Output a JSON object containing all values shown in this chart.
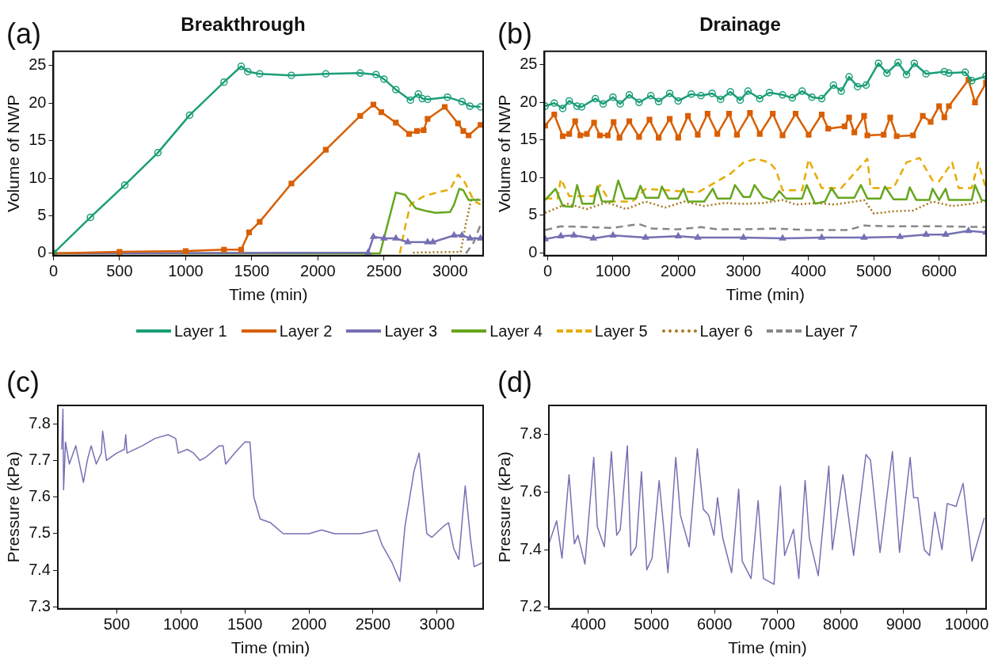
{
  "chart_data": [
    {
      "type": "line",
      "title": "Breakthrough",
      "xlabel": "Time (min)",
      "ylabel": "Volume of NWP",
      "annotations": [
        "(a)"
      ],
      "xlim": [
        0,
        3250
      ],
      "ylim": [
        -0.3,
        26.9
      ],
      "xticks": [
        0,
        500,
        1000,
        1500,
        2000,
        2500,
        3000
      ],
      "yticks": [
        0,
        5,
        10,
        15,
        20,
        25
      ],
      "legend": "bottom",
      "series": [
        {
          "name": "Layer 1",
          "color": "#1b9e77",
          "marker": "circle",
          "line_style": "solid",
          "x": [
            0,
            280,
            540,
            790,
            1030,
            1290,
            1420,
            1470,
            1560,
            1800,
            2060,
            2320,
            2440,
            2500,
            2590,
            2700,
            2760,
            2790,
            2830,
            2980,
            3090,
            3150,
            3230
          ],
          "values": [
            0,
            4.8,
            9.1,
            13.4,
            18.4,
            22.8,
            24.9,
            24.2,
            23.9,
            23.7,
            23.9,
            24,
            23.8,
            23.2,
            21.8,
            20.4,
            21.2,
            20.6,
            20.5,
            20.8,
            20.2,
            19.6,
            19.5
          ]
        },
        {
          "name": "Layer 2",
          "color": "#d95f02",
          "marker": "square",
          "line_style": "solid",
          "x": [
            0,
            500,
            1000,
            1290,
            1420,
            1480,
            1560,
            1800,
            2060,
            2320,
            2420,
            2480,
            2590,
            2690,
            2750,
            2800,
            2830,
            2960,
            3060,
            3100,
            3140,
            3230
          ],
          "values": [
            0,
            0.2,
            0.3,
            0.5,
            0.5,
            2.8,
            4.2,
            9.3,
            13.8,
            18.3,
            19.8,
            18.8,
            17.4,
            15.9,
            16.3,
            16.4,
            17.9,
            19.5,
            17.3,
            16.3,
            15.7,
            17.1
          ]
        },
        {
          "name": "Layer 3",
          "color": "#7570b3",
          "marker": "triangle",
          "line_style": "solid",
          "x": [
            0,
            2380,
            2420,
            2500,
            2590,
            2680,
            2830,
            2870,
            3030,
            3090,
            3150,
            3230
          ],
          "values": [
            0,
            0.1,
            2.2,
            2.0,
            2.0,
            1.5,
            1.5,
            1.5,
            2.4,
            2.4,
            2.0,
            2.0
          ]
        },
        {
          "name": "Layer 4",
          "color": "#66a61e",
          "line_style": "solid",
          "x": [
            0,
            2470,
            2590,
            2660,
            2740,
            2830,
            2890,
            3000,
            3030,
            3070,
            3100,
            3140,
            3230
          ],
          "values": [
            0,
            0,
            8.1,
            7.8,
            6.0,
            5.6,
            5.4,
            5.5,
            6.5,
            8.6,
            8.4,
            7.1,
            7.1
          ]
        },
        {
          "name": "Layer 5",
          "color": "#e6ab02",
          "line_style": "dashed",
          "x": [
            2620,
            2660,
            2700,
            2800,
            2900,
            3000,
            3060,
            3110,
            3180,
            3230
          ],
          "values": [
            0,
            3.5,
            6.5,
            7.6,
            8.1,
            8.5,
            10.5,
            9.5,
            7.0,
            6.5
          ]
        },
        {
          "name": "Layer 6",
          "color": "#a6761d",
          "line_style": "dotted",
          "x": [
            2720,
            3080,
            3120,
            3160,
            3230
          ],
          "values": [
            0.1,
            0.2,
            4,
            7.2,
            7.2
          ]
        },
        {
          "name": "Layer 7",
          "color": "#888888",
          "line_style": "dashed",
          "x": [
            3120,
            3180,
            3230
          ],
          "values": [
            0,
            1.5,
            3.8
          ]
        }
      ]
    },
    {
      "type": "line",
      "title": "Drainage",
      "xlabel": "Time (min)",
      "ylabel": "Volume of NWP",
      "annotations": [
        "(b)"
      ],
      "xlim": [
        -50,
        6720
      ],
      "ylim": [
        -0.4,
        26.8
      ],
      "xticks": [
        0,
        1000,
        2000,
        3000,
        4000,
        5000,
        6000
      ],
      "yticks": [
        0,
        5,
        10,
        15,
        20,
        25
      ],
      "legend": "bottom",
      "series": [
        {
          "name": "Layer 1",
          "color": "#1b9e77",
          "marker": "circle",
          "line_style": "solid",
          "x": [
            -40,
            100,
            230,
            330,
            450,
            520,
            730,
            850,
            1000,
            1110,
            1250,
            1400,
            1580,
            1700,
            1870,
            2000,
            2200,
            2350,
            2520,
            2650,
            2800,
            2950,
            3070,
            3250,
            3400,
            3600,
            3750,
            3900,
            4050,
            4200,
            4380,
            4500,
            4620,
            4750,
            4880,
            5070,
            5200,
            5370,
            5500,
            5620,
            5800,
            6080,
            6150,
            6400,
            6500,
            6720
          ],
          "values": [
            19.5,
            19.9,
            19.2,
            20.2,
            19.5,
            19.4,
            20.5,
            19.8,
            20.7,
            19.8,
            21.0,
            20.0,
            20.9,
            20.1,
            21.2,
            20.2,
            21.1,
            20.9,
            21.2,
            20.4,
            21.4,
            20.3,
            21.5,
            20.5,
            21.3,
            21.0,
            20.6,
            21.5,
            20.7,
            20.5,
            22.3,
            21.5,
            23.4,
            22.1,
            22.3,
            25.2,
            23.9,
            25.3,
            23.7,
            25.2,
            23.8,
            24.1,
            23.9,
            24.0,
            22.9,
            23.5
          ]
        },
        {
          "name": "Layer 2",
          "color": "#d95f02",
          "marker": "square",
          "line_style": "solid",
          "x": [
            -40,
            100,
            230,
            330,
            420,
            500,
            600,
            710,
            800,
            920,
            1010,
            1100,
            1250,
            1400,
            1560,
            1700,
            1870,
            2000,
            2150,
            2300,
            2450,
            2600,
            2780,
            2900,
            3100,
            3250,
            3450,
            3600,
            3800,
            4000,
            4200,
            4300,
            4550,
            4620,
            4700,
            4850,
            4900,
            5150,
            5250,
            5350,
            5600,
            5750,
            5870,
            6000,
            6080,
            6150,
            6450,
            6550,
            6720
          ],
          "values": [
            16.9,
            18.4,
            15.5,
            15.8,
            17.5,
            15.6,
            15.8,
            17.3,
            15.6,
            15.6,
            17.4,
            15.3,
            17.5,
            15.4,
            17.7,
            15.3,
            17.8,
            15.3,
            18.2,
            15.7,
            18.5,
            15.8,
            18.5,
            15.7,
            18.6,
            15.8,
            18.5,
            15.6,
            18.5,
            15.7,
            18.4,
            16.5,
            16.8,
            18.0,
            16.0,
            18.2,
            15.6,
            15.7,
            18.0,
            15.5,
            15.6,
            18.2,
            17.4,
            19.5,
            18.0,
            19.5,
            23.0,
            20.0,
            22.6
          ]
        },
        {
          "name": "Layer 3",
          "color": "#7570b3",
          "marker": "triangle",
          "line_style": "solid",
          "x": [
            -40,
            200,
            400,
            700,
            1000,
            1500,
            2000,
            2300,
            3000,
            3600,
            4200,
            4850,
            5400,
            5800,
            6100,
            6450,
            6720
          ],
          "values": [
            1.8,
            2.2,
            2.3,
            1.9,
            2.3,
            2.0,
            2.2,
            2.0,
            2.0,
            1.9,
            2.0,
            2.0,
            2.1,
            2.4,
            2.4,
            2.9,
            2.7
          ]
        },
        {
          "name": "Layer 4",
          "color": "#66a61e",
          "line_style": "solid",
          "x": [
            -40,
            120,
            230,
            380,
            450,
            530,
            700,
            760,
            830,
            1000,
            1080,
            1180,
            1350,
            1420,
            1500,
            1700,
            1750,
            1850,
            2000,
            2080,
            2150,
            2400,
            2530,
            2600,
            2800,
            2870,
            3000,
            3100,
            3170,
            3300,
            3450,
            3550,
            3650,
            3900,
            3970,
            4100,
            4250,
            4350,
            4450,
            4700,
            4800,
            4900,
            5100,
            5170,
            5300,
            5500,
            5550,
            5650,
            5850,
            5900,
            6000,
            6100,
            6150,
            6500,
            6550,
            6650,
            6720
          ],
          "values": [
            7,
            8.5,
            6.2,
            6.1,
            9.0,
            6.5,
            6.5,
            8.8,
            6.8,
            6.8,
            9.6,
            7.2,
            7.2,
            8.9,
            7.3,
            7.3,
            8.8,
            7.2,
            7.2,
            8.5,
            6.8,
            6.8,
            8.5,
            7.2,
            7.2,
            9.0,
            7.4,
            7.4,
            9.0,
            7.4,
            7.0,
            8.2,
            7.2,
            7.2,
            9.0,
            6.5,
            6.8,
            8.6,
            7.3,
            7.3,
            9.0,
            7.2,
            7.2,
            8.8,
            7.1,
            7.1,
            8.7,
            7.0,
            7.0,
            8.5,
            7.0,
            8.5,
            7.0,
            7.0,
            9.0,
            7.0,
            6.9
          ]
        },
        {
          "name": "Layer 5",
          "color": "#e6ab02",
          "line_style": "dashed",
          "x": [
            -40,
            150,
            200,
            330,
            700,
            800,
            950,
            1300,
            1500,
            2300,
            2800,
            3000,
            3200,
            3400,
            3500,
            3600,
            3900,
            4000,
            4200,
            4500,
            4900,
            4950,
            5300,
            5500,
            5700,
            5900,
            6000,
            6200,
            6300,
            6500,
            6600,
            6720
          ],
          "values": [
            7.2,
            7.2,
            9.8,
            7.5,
            7.5,
            9.0,
            6.8,
            6.8,
            8.5,
            8.0,
            10.5,
            12.0,
            12.5,
            12.0,
            11,
            8.3,
            8.3,
            12.4,
            8.6,
            8.6,
            12.5,
            8.6,
            8.6,
            12.0,
            12.6,
            9.6,
            9.5,
            12.0,
            8.6,
            8.6,
            12.0,
            8.5
          ]
        },
        {
          "name": "Layer 6",
          "color": "#a6761d",
          "line_style": "dotted",
          "x": [
            -40,
            300,
            600,
            900,
            1200,
            1500,
            1800,
            2100,
            2400,
            2700,
            3000,
            3300,
            3600,
            3800,
            4100,
            4400,
            4850,
            5000,
            5300,
            5600,
            5900,
            6200,
            6500,
            6720
          ],
          "values": [
            5.3,
            6.5,
            5.8,
            6.7,
            5.8,
            6.8,
            6.0,
            6.8,
            6.2,
            6.6,
            6.5,
            6.6,
            7.0,
            6.4,
            6.6,
            6.4,
            7.0,
            5.2,
            5.5,
            5.6,
            6.8,
            6.2,
            6.5,
            6.9
          ]
        },
        {
          "name": "Layer 7",
          "color": "#888888",
          "line_style": "dashed",
          "x": [
            -40,
            200,
            600,
            1000,
            1400,
            1600,
            2000,
            2350,
            2600,
            3000,
            3500,
            4000,
            4600,
            4850,
            5200,
            6000,
            6720
          ],
          "values": [
            3.0,
            3.5,
            3.4,
            3.3,
            3.8,
            3.2,
            3.1,
            3.4,
            3.1,
            3.1,
            3.2,
            3.0,
            3.0,
            3.6,
            3.5,
            3.5,
            3.4
          ]
        }
      ]
    },
    {
      "type": "line",
      "xlabel": "Time (min)",
      "ylabel": "Pressure (kPa)",
      "annotations": [
        "(c)"
      ],
      "xlim": [
        40,
        3360
      ],
      "ylim": [
        7.295,
        7.85
      ],
      "xticks": [
        500,
        1000,
        1500,
        2000,
        2500,
        3000
      ],
      "yticks": [
        7.3,
        7.4,
        7.5,
        7.6,
        7.7,
        7.8
      ],
      "series": [
        {
          "color": "#7570b3",
          "x": [
            70,
            80,
            85,
            100,
            130,
            180,
            240,
            270,
            300,
            340,
            380,
            390,
            420,
            500,
            560,
            570,
            580,
            700,
            800,
            900,
            960,
            980,
            1050,
            1100,
            1150,
            1200,
            1300,
            1330,
            1350,
            1420,
            1500,
            1540,
            1570,
            1620,
            1700,
            1800,
            1900,
            2000,
            2100,
            2200,
            2300,
            2400,
            2530,
            2570,
            2650,
            2710,
            2750,
            2820,
            2860,
            2880,
            2920,
            2960,
            3050,
            3090,
            3130,
            3170,
            3220,
            3260,
            3290,
            3350
          ],
          "values": [
            7.73,
            7.84,
            7.62,
            7.75,
            7.69,
            7.74,
            7.64,
            7.7,
            7.74,
            7.69,
            7.72,
            7.78,
            7.7,
            7.72,
            7.73,
            7.77,
            7.72,
            7.74,
            7.76,
            7.77,
            7.76,
            7.72,
            7.73,
            7.72,
            7.7,
            7.71,
            7.74,
            7.74,
            7.69,
            7.72,
            7.75,
            7.75,
            7.6,
            7.54,
            7.53,
            7.5,
            7.5,
            7.5,
            7.51,
            7.5,
            7.5,
            7.5,
            7.51,
            7.47,
            7.42,
            7.37,
            7.52,
            7.67,
            7.72,
            7.65,
            7.5,
            7.49,
            7.52,
            7.53,
            7.46,
            7.43,
            7.63,
            7.49,
            7.41,
            7.42
          ]
        }
      ]
    },
    {
      "type": "line",
      "xlabel": "Time (min)",
      "ylabel": "Pressure (kPa)",
      "annotations": [
        "(d)"
      ],
      "xlim": [
        3372,
        10308
      ],
      "ylim": [
        7.195,
        7.9
      ],
      "xticks": [
        4000,
        5000,
        6000,
        7000,
        8000,
        9000,
        10000
      ],
      "yticks": [
        7.2,
        7.4,
        7.6,
        7.8
      ],
      "series": [
        {
          "color": "#7570b3",
          "x": [
            3372,
            3495,
            3580,
            3692,
            3776,
            3832,
            3944,
            4084,
            4140,
            4252,
            4364,
            4448,
            4505,
            4617,
            4673,
            4757,
            4841,
            4925,
            5009,
            5121,
            5261,
            5385,
            5458,
            5598,
            5727,
            5822,
            5906,
            5991,
            6047,
            6131,
            6271,
            6383,
            6439,
            6580,
            6692,
            6776,
            6944,
            7045,
            7112,
            7253,
            7337,
            7437,
            7504,
            7645,
            7813,
            7869,
            8037,
            8206,
            8402,
            8475,
            8626,
            8822,
            8935,
            9103,
            9159,
            9226,
            9327,
            9411,
            9495,
            9608,
            9692,
            9832,
            9944,
            10084,
            10280
          ],
          "values": [
            7.42,
            7.5,
            7.37,
            7.66,
            7.42,
            7.45,
            7.35,
            7.72,
            7.48,
            7.41,
            7.74,
            7.45,
            7.47,
            7.76,
            7.38,
            7.41,
            7.67,
            7.33,
            7.37,
            7.64,
            7.32,
            7.72,
            7.52,
            7.41,
            7.75,
            7.54,
            7.52,
            7.45,
            7.58,
            7.44,
            7.32,
            7.61,
            7.36,
            7.3,
            7.57,
            7.3,
            7.28,
            7.62,
            7.38,
            7.47,
            7.3,
            7.64,
            7.44,
            7.31,
            7.69,
            7.4,
            7.66,
            7.38,
            7.73,
            7.71,
            7.39,
            7.74,
            7.39,
            7.72,
            7.58,
            7.58,
            7.4,
            7.38,
            7.53,
            7.4,
            7.56,
            7.55,
            7.63,
            7.36,
            7.51
          ]
        }
      ]
    }
  ]
}
